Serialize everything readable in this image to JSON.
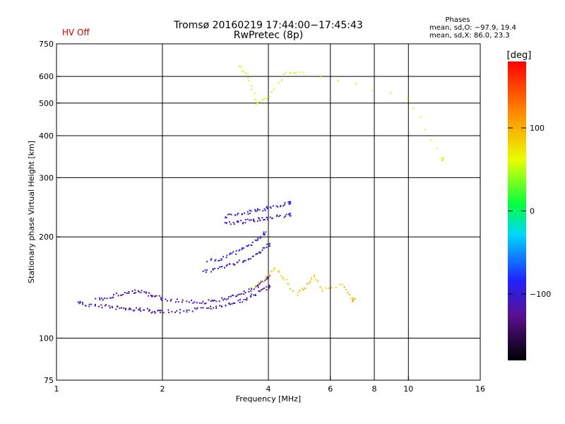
{
  "header": {
    "hv_status": "HV Off",
    "title": "Tromsø 20160219 17:44:00−17:45:43",
    "subtitle": "RwPretec (8p)",
    "phases_title": "Phases",
    "phases_o": "mean, sd,O: −97.9, 19.4",
    "phases_x": "mean, sd,X: 86.0, 23.3"
  },
  "colorbar": {
    "label": "[deg]",
    "ticks": [
      {
        "label": "100",
        "value": 100
      },
      {
        "label": "0",
        "value": 0
      },
      {
        "label": "−100",
        "value": -100
      }
    ],
    "range": [
      -180,
      180
    ]
  },
  "chart_data": {
    "type": "scatter",
    "xlabel": "Frequency [MHz]",
    "ylabel": "Stationary phase Virtual Height [km]",
    "xscale": "log",
    "yscale": "log",
    "xlim": [
      1,
      16
    ],
    "ylim": [
      75,
      750
    ],
    "xticks": [
      {
        "label": "1",
        "value": 1
      },
      {
        "label": "2",
        "value": 2
      },
      {
        "label": "4",
        "value": 4
      },
      {
        "label": "6",
        "value": 6
      },
      {
        "label": "8",
        "value": 8
      },
      {
        "label": "10",
        "value": 10
      },
      {
        "label": "16",
        "value": 16
      }
    ],
    "yticks": [
      {
        "label": "75",
        "value": 75
      },
      {
        "label": "100",
        "value": 100
      },
      {
        "label": "200",
        "value": 200
      },
      {
        "label": "300",
        "value": 300
      },
      {
        "label": "400",
        "value": 400
      },
      {
        "label": "500",
        "value": 500
      },
      {
        "label": "600",
        "value": 600
      },
      {
        "label": "750",
        "value": 750
      }
    ],
    "grid_x": [
      2,
      4,
      6,
      8,
      10
    ],
    "grid_y": [
      100,
      200,
      300,
      400,
      500,
      600
    ],
    "color_variable": "phase [deg]",
    "traces": [
      {
        "desc": "O-mode E/F1 trace",
        "x": [
          1.15,
          1.2,
          1.3,
          1.4,
          1.5,
          1.6,
          1.7,
          1.8,
          1.9,
          2.0,
          2.2,
          2.4,
          2.6,
          2.8,
          3.0,
          3.2,
          3.4,
          3.6,
          3.8,
          4.0
        ],
        "y": [
          128,
          126,
          125,
          124,
          123,
          122,
          122,
          121,
          120,
          120,
          120,
          121,
          122,
          123,
          125,
          127,
          130,
          134,
          138,
          142
        ],
        "phase": -110
      },
      {
        "desc": "X-mode low trace",
        "x": [
          1.3,
          1.4,
          1.5,
          1.6,
          1.7,
          1.8,
          1.9,
          2.0,
          2.2,
          2.4,
          2.6,
          2.8,
          3.0,
          3.2,
          3.4,
          3.6,
          3.8,
          4.0
        ],
        "y": [
          130,
          132,
          135,
          137,
          138,
          136,
          133,
          131,
          129,
          128,
          128,
          129,
          131,
          133,
          136,
          140,
          145,
          152
        ],
        "phase": -115
      },
      {
        "desc": "F2 O-mode curve",
        "x": [
          2.6,
          2.8,
          3.0,
          3.2,
          3.4,
          3.6,
          3.8,
          4.0
        ],
        "y": [
          158,
          160,
          163,
          166,
          170,
          175,
          180,
          190
        ],
        "phase": -105
      },
      {
        "desc": "F2 X-mode curve",
        "x": [
          2.7,
          2.9,
          3.1,
          3.3,
          3.5,
          3.7,
          3.9
        ],
        "y": [
          170,
          172,
          176,
          181,
          187,
          195,
          205
        ],
        "phase": -95
      },
      {
        "desc": "spread F band 1",
        "x": [
          3.0,
          3.2,
          3.4,
          3.6,
          3.8,
          4.0,
          4.3,
          4.6
        ],
        "y": [
          230,
          232,
          235,
          238,
          241,
          244,
          248,
          252
        ],
        "phase": -100
      },
      {
        "desc": "spread F band 2",
        "x": [
          3.0,
          3.2,
          3.4,
          3.6,
          3.8,
          4.0,
          4.3,
          4.6
        ],
        "y": [
          218,
          220,
          222,
          224,
          226,
          228,
          230,
          232
        ],
        "phase": -100
      },
      {
        "desc": "X-mode scatter 4-6 MHz",
        "x": [
          3.6,
          3.9,
          4.2,
          4.5,
          4.8,
          5.1,
          5.4,
          5.7,
          6.5,
          7.0
        ],
        "y": [
          140,
          150,
          160,
          148,
          135,
          142,
          155,
          138,
          145,
          130
        ],
        "phase": 90
      },
      {
        "desc": "high echoes",
        "x": [
          3.3,
          3.5,
          3.7,
          4.0,
          4.5,
          5.0,
          10.0,
          12.5
        ],
        "y": [
          640,
          600,
          500,
          520,
          620,
          615,
          520,
          340
        ],
        "phase": 60
      }
    ]
  }
}
